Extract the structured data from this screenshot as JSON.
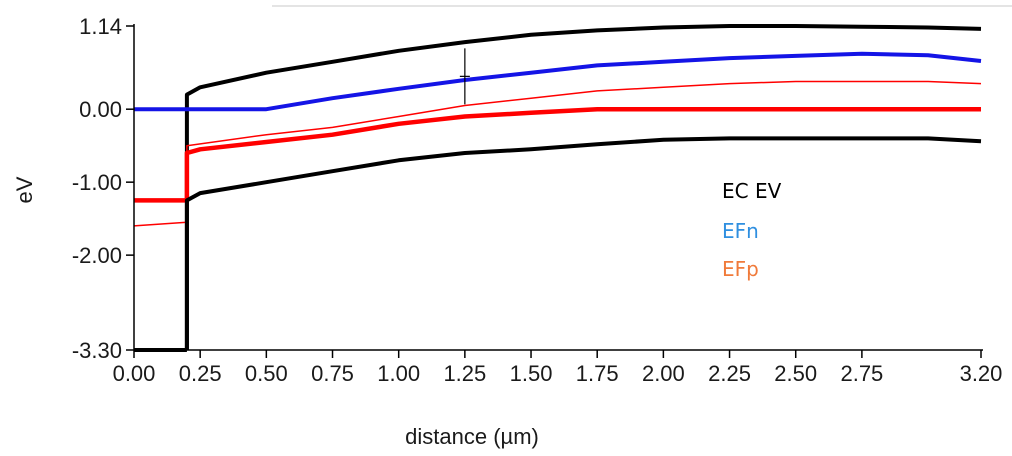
{
  "chart_data": {
    "type": "line",
    "xlabel": "distance (µm)",
    "ylabel": "eV",
    "xlim": [
      0,
      3.2
    ],
    "ylim": [
      -3.3,
      1.14
    ],
    "x_ticks": [
      "0.00",
      "0.25",
      "0.50",
      "0.75",
      "1.00",
      "1.25",
      "1.50",
      "1.75",
      "2.00",
      "2.25",
      "2.50",
      "2.75",
      "3.20"
    ],
    "x_tick_values": [
      0,
      0.25,
      0.5,
      0.75,
      1.0,
      1.25,
      1.5,
      1.75,
      2.0,
      2.25,
      2.5,
      2.75,
      3.2
    ],
    "y_ticks": [
      "1.14",
      "0.00",
      "-1.00",
      "-2.00",
      "-3.30"
    ],
    "y_tick_values": [
      1.14,
      0,
      -1,
      -2,
      -3.3
    ],
    "grid": false,
    "legend": {
      "placement": "right",
      "entries": [
        {
          "label": "EC EV",
          "color": "#000000"
        },
        {
          "label": "EFn",
          "color": "#2f8fe0"
        },
        {
          "label": "EFp",
          "color": "#f07a3a"
        }
      ]
    },
    "series": [
      {
        "key": "ec",
        "color": "#000000",
        "width": 4,
        "x": [
          0.2,
          0.2,
          0.25,
          0.5,
          0.75,
          1.0,
          1.25,
          1.5,
          1.75,
          2.0,
          2.25,
          2.5,
          2.75,
          3.0,
          3.2
        ],
        "y": [
          -3.3,
          0.2,
          0.3,
          0.5,
          0.65,
          0.8,
          0.92,
          1.02,
          1.08,
          1.12,
          1.14,
          1.14,
          1.13,
          1.12,
          1.1
        ]
      },
      {
        "key": "ec_left",
        "color": "#000000",
        "width": 4,
        "x": [
          0.0,
          0.2
        ],
        "y": [
          -3.3,
          -3.3
        ]
      },
      {
        "key": "efn",
        "color": "#1414e6",
        "width": 4,
        "x": [
          0.0,
          0.5,
          0.75,
          1.0,
          1.25,
          1.5,
          1.75,
          2.0,
          2.25,
          2.5,
          2.75,
          3.0,
          3.2
        ],
        "y": [
          0.0,
          0.0,
          0.15,
          0.28,
          0.4,
          0.5,
          0.6,
          0.65,
          0.7,
          0.73,
          0.76,
          0.74,
          0.66
        ]
      },
      {
        "key": "efp_thin",
        "color": "#ff0000",
        "width": 1.5,
        "x": [
          0.0,
          0.2,
          0.2,
          0.5,
          0.75,
          1.0,
          1.25,
          1.5,
          1.75,
          2.0,
          2.25,
          2.5,
          2.75,
          3.0,
          3.2
        ],
        "y": [
          -1.6,
          -1.55,
          -0.5,
          -0.35,
          -0.25,
          -0.1,
          0.05,
          0.15,
          0.25,
          0.3,
          0.35,
          0.38,
          0.38,
          0.38,
          0.35
        ]
      },
      {
        "key": "efp",
        "color": "#ff0000",
        "width": 4.5,
        "x": [
          0.0,
          0.2,
          0.2,
          0.25,
          0.5,
          0.75,
          1.0,
          1.25,
          1.5,
          1.75,
          2.0,
          2.25,
          2.5,
          2.75,
          3.0,
          3.2
        ],
        "y": [
          -1.25,
          -1.25,
          -0.6,
          -0.55,
          -0.45,
          -0.35,
          -0.2,
          -0.1,
          -0.05,
          0.0,
          0.0,
          0.0,
          0.0,
          0.0,
          0.0,
          0.0
        ]
      },
      {
        "key": "ev",
        "color": "#000000",
        "width": 4,
        "x": [
          0.2,
          0.2,
          0.25,
          0.5,
          0.75,
          1.0,
          1.25,
          1.5,
          1.75,
          2.0,
          2.25,
          2.5,
          2.75,
          3.0,
          3.2
        ],
        "y": [
          -3.3,
          -1.25,
          -1.15,
          -1.0,
          -0.85,
          -0.7,
          -0.6,
          -0.55,
          -0.48,
          -0.42,
          -0.4,
          -0.4,
          -0.4,
          -0.4,
          -0.44
        ]
      }
    ],
    "cursor": {
      "x": 1.25,
      "y": 0.45
    }
  }
}
